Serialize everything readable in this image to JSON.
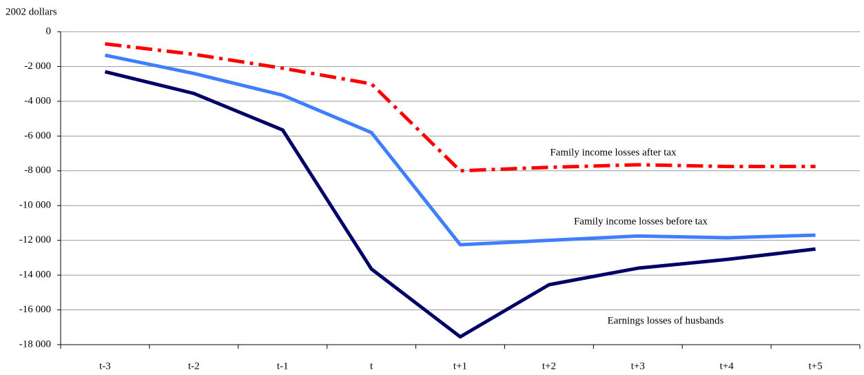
{
  "chart_data": {
    "type": "line",
    "y_axis_label": "2002 dollars",
    "categories": [
      "t-3",
      "t-2",
      "t-1",
      "t",
      "t+1",
      "t+2",
      "t+3",
      "t+4",
      "t+5"
    ],
    "series": [
      {
        "name": "Family income losses after tax",
        "color": "#ff0000",
        "dash": true,
        "values": [
          -700,
          -1300,
          -2100,
          -3000,
          -8000,
          -7800,
          -7650,
          -7750,
          -7750
        ]
      },
      {
        "name": "Family income losses before tax",
        "color": "#3f7fff",
        "dash": false,
        "values": [
          -1350,
          -2400,
          -3650,
          -5800,
          -12250,
          -12000,
          -11750,
          -11850,
          -11700
        ]
      },
      {
        "name": "Earnings losses of husbands",
        "color": "#000066",
        "dash": false,
        "values": [
          -2300,
          -3550,
          -5650,
          -13650,
          -17550,
          -14550,
          -13600,
          -13100,
          -12500
        ]
      }
    ],
    "ylim": [
      -18000,
      0
    ],
    "yticks": [
      {
        "value": -18000,
        "label": "-18 000"
      },
      {
        "value": -16000,
        "label": "-16 000"
      },
      {
        "value": -14000,
        "label": "-14 000"
      },
      {
        "value": -12000,
        "label": "-12 000"
      },
      {
        "value": -10000,
        "label": "-10 000"
      },
      {
        "value": -8000,
        "label": "-8 000"
      },
      {
        "value": -6000,
        "label": "-6 000"
      },
      {
        "value": -4000,
        "label": "-4 000"
      },
      {
        "value": -2000,
        "label": "-2 000"
      },
      0
    ],
    "grid": true
  }
}
